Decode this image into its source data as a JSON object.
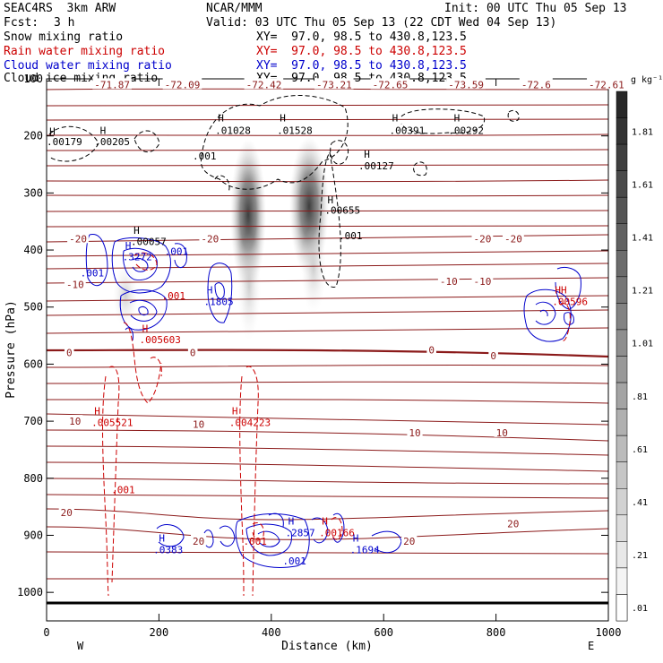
{
  "header": {
    "model": "SEAC4RS  3km ARW",
    "center": "NCAR/MMM",
    "init": "Init: 00 UTC Thu 05 Sep 13",
    "fcst_label": "Fcst:",
    "fcst_value": "3 h",
    "valid": "Valid: 03 UTC Thu 05 Sep 13 (22 CDT Wed 04 Sep 13)"
  },
  "legend": [
    {
      "name": "Snow mixing ratio",
      "xy": "XY=  97.0, 98.5 to 430.8,123.5",
      "color": "#000000"
    },
    {
      "name": "Rain water mixing ratio",
      "xy": "XY=  97.0, 98.5 to 430.8,123.5",
      "color": "#cc0000"
    },
    {
      "name": "Cloud water mixing ratio",
      "xy": "XY=  97.0, 98.5 to 430.8,123.5",
      "color": "#0000cc"
    },
    {
      "name": "Cloud ice mixing ratio",
      "xy": "XY=  97.0, 98.5 to 430.8,123.5",
      "color": "#000000"
    }
  ],
  "chart_data": {
    "type": "heatmap",
    "xlabel": "Distance (km)",
    "ylabel": "Pressure (hPa)",
    "xlim": [
      0,
      1000
    ],
    "ylim": [
      1050,
      100
    ],
    "x_ticks": [
      "0",
      "200",
      "400",
      "600",
      "800",
      "1000"
    ],
    "y_ticks": [
      "100",
      "200",
      "300",
      "400",
      "500",
      "600",
      "700",
      "800",
      "900",
      "1000"
    ],
    "left_end": "W",
    "right_end": "E",
    "colorbar": {
      "unit": "g kg⁻¹",
      "labels": [
        "1.81",
        "1.61",
        "1.41",
        "1.21",
        "1.01",
        ".81",
        ".61",
        ".41",
        ".21",
        ".01"
      ]
    },
    "temperature_labels": [
      {
        "text": "-71.87",
        "x": 85,
        "p": 110
      },
      {
        "text": "-72.09",
        "x": 210,
        "p": 110
      },
      {
        "text": "-72.42",
        "x": 355,
        "p": 110
      },
      {
        "text": "-73.21",
        "x": 480,
        "p": 110
      },
      {
        "text": "-72.65",
        "x": 580,
        "p": 110
      },
      {
        "text": "-73.59",
        "x": 715,
        "p": 110
      },
      {
        "text": "-72.6",
        "x": 845,
        "p": 110
      },
      {
        "text": "-72.61",
        "x": 965,
        "p": 110
      },
      {
        "text": "-20",
        "x": 40,
        "p": 380
      },
      {
        "text": "-20",
        "x": 275,
        "p": 380
      },
      {
        "text": "-20",
        "x": 760,
        "p": 380
      },
      {
        "text": "-20",
        "x": 815,
        "p": 380
      },
      {
        "text": "-10",
        "x": 35,
        "p": 460
      },
      {
        "text": "-10",
        "x": 700,
        "p": 455
      },
      {
        "text": "-10",
        "x": 760,
        "p": 455
      },
      {
        "text": "0",
        "x": 35,
        "p": 580
      },
      {
        "text": "0",
        "x": 255,
        "p": 580
      },
      {
        "text": "0",
        "x": 680,
        "p": 575
      },
      {
        "text": "0",
        "x": 790,
        "p": 585
      },
      {
        "text": "10",
        "x": 40,
        "p": 700
      },
      {
        "text": "10",
        "x": 260,
        "p": 705
      },
      {
        "text": "10",
        "x": 645,
        "p": 720
      },
      {
        "text": "10",
        "x": 800,
        "p": 720
      },
      {
        "text": "20",
        "x": 25,
        "p": 860
      },
      {
        "text": "20",
        "x": 260,
        "p": 910
      },
      {
        "text": "20",
        "x": 635,
        "p": 910
      },
      {
        "text": "20",
        "x": 820,
        "p": 880
      }
    ],
    "maxima_labels": [
      {
        "text": "H",
        "x": 5,
        "p": 192,
        "color": "#000000"
      },
      {
        "text": ".00179",
        "x": 0,
        "p": 210,
        "color": "#000000"
      },
      {
        "text": "H",
        "x": 95,
        "p": 190,
        "color": "#000000"
      },
      {
        "text": ".00205",
        "x": 85,
        "p": 210,
        "color": "#000000"
      },
      {
        "text": "H",
        "x": 305,
        "p": 168,
        "color": "#000000"
      },
      {
        "text": ".01028",
        "x": 300,
        "p": 190,
        "color": "#000000"
      },
      {
        "text": "H",
        "x": 415,
        "p": 168,
        "color": "#000000"
      },
      {
        "text": ".01528",
        "x": 410,
        "p": 190,
        "color": "#000000"
      },
      {
        "text": "H",
        "x": 615,
        "p": 168,
        "color": "#000000"
      },
      {
        "text": ".00391",
        "x": 610,
        "p": 190,
        "color": "#000000"
      },
      {
        "text": "H",
        "x": 725,
        "p": 168,
        "color": "#000000"
      },
      {
        "text": ".00292",
        "x": 715,
        "p": 190,
        "color": "#000000"
      },
      {
        "text": ".001",
        "x": 260,
        "p": 235,
        "color": "#000000"
      },
      {
        "text": "H",
        "x": 565,
        "p": 232,
        "color": "#000000"
      },
      {
        "text": ".00127",
        "x": 555,
        "p": 252,
        "color": "#000000"
      },
      {
        "text": "H",
        "x": 500,
        "p": 312,
        "color": "#000000"
      },
      {
        "text": ".00655",
        "x": 495,
        "p": 330,
        "color": "#000000"
      },
      {
        "text": ".001",
        "x": 520,
        "p": 375,
        "color": "#000000"
      },
      {
        "text": "H",
        "x": 155,
        "p": 365,
        "color": "#000000"
      },
      {
        "text": ".00057",
        "x": 150,
        "p": 385,
        "color": "#000000"
      },
      {
        "text": "H",
        "x": 140,
        "p": 392,
        "color": "#0000cc"
      },
      {
        "text": ".3272",
        "x": 135,
        "p": 412,
        "color": "#0000cc"
      },
      {
        "text": ".001",
        "x": 210,
        "p": 402,
        "color": "#0000cc"
      },
      {
        "text": ".001",
        "x": 60,
        "p": 440,
        "color": "#0000cc"
      },
      {
        "text": ".001",
        "x": 205,
        "p": 480,
        "color": "#cc0000"
      },
      {
        "text": "H",
        "x": 285,
        "p": 470,
        "color": "#0000cc"
      },
      {
        "text": ".1805",
        "x": 280,
        "p": 490,
        "color": "#0000cc"
      },
      {
        "text": "H",
        "x": 170,
        "p": 537,
        "color": "#cc0000"
      },
      {
        "text": ".005603",
        "x": 165,
        "p": 557,
        "color": "#cc0000"
      },
      {
        "text": "HH",
        "x": 905,
        "p": 470,
        "color": "#cc0000"
      },
      {
        "text": ".00596",
        "x": 900,
        "p": 490,
        "color": "#cc0000"
      },
      {
        "text": "H",
        "x": 85,
        "p": 682,
        "color": "#cc0000"
      },
      {
        "text": ".005521",
        "x": 80,
        "p": 702,
        "color": "#cc0000"
      },
      {
        "text": "H",
        "x": 330,
        "p": 682,
        "color": "#cc0000"
      },
      {
        "text": ".004223",
        "x": 325,
        "p": 702,
        "color": "#cc0000"
      },
      {
        "text": ".001",
        "x": 115,
        "p": 820,
        "color": "#cc0000"
      },
      {
        "text": "H",
        "x": 200,
        "p": 905,
        "color": "#0000cc"
      },
      {
        "text": ".0383",
        "x": 190,
        "p": 925,
        "color": "#0000cc"
      },
      {
        "text": "H",
        "x": 430,
        "p": 875,
        "color": "#0000cc"
      },
      {
        "text": ".2857",
        "x": 425,
        "p": 895,
        "color": "#0000cc"
      },
      {
        "text": "H",
        "x": 490,
        "p": 875,
        "color": "#cc0000"
      },
      {
        "text": ".00166",
        "x": 485,
        "p": 895,
        "color": "#cc0000"
      },
      {
        "text": ".001",
        "x": 350,
        "p": 910,
        "color": "#cc0000"
      },
      {
        "text": ".001",
        "x": 420,
        "p": 945,
        "color": "#0000cc"
      },
      {
        "text": "H",
        "x": 545,
        "p": 905,
        "color": "#0000cc"
      },
      {
        "text": ".1694",
        "x": 540,
        "p": 925,
        "color": "#0000cc"
      }
    ]
  }
}
